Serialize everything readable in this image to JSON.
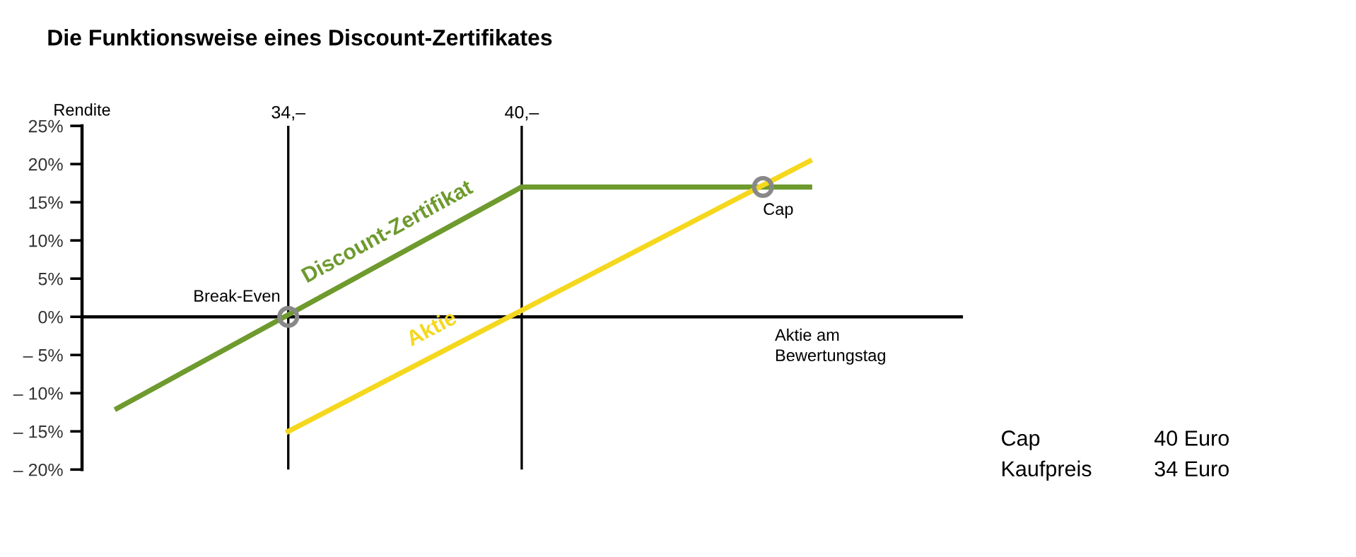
{
  "chart_data": {
    "type": "line",
    "title": "Die Funktionsweise eines Discount-Zertifikates",
    "xlabel": "Aktie am\nBewertungstag",
    "ylabel": "Rendite",
    "series": [
      {
        "name": "Discount-Zertifikat",
        "color": "#6e9a2e",
        "x": [
          29.6,
          40,
          47.4
        ],
        "values": [
          -12,
          17,
          17
        ]
      },
      {
        "name": "Aktie",
        "color": "#f5d81e",
        "x": [
          34,
          47.4
        ],
        "values": [
          -15,
          20.4
        ]
      }
    ],
    "xlim": [
      28.7,
      51.3
    ],
    "xticks": [
      {
        "value": 34,
        "label": "34,–"
      },
      {
        "value": 40,
        "label": "40,–"
      }
    ],
    "ylim": [
      -20,
      25
    ],
    "yticks": [
      {
        "value": 25,
        "label": "25%"
      },
      {
        "value": 20,
        "label": "20%"
      },
      {
        "value": 15,
        "label": "15%"
      },
      {
        "value": 10,
        "label": "10%"
      },
      {
        "value": 5,
        "label": "5%"
      },
      {
        "value": 0,
        "label": "0%"
      },
      {
        "value": -5,
        "label": "– 5%"
      },
      {
        "value": -10,
        "label": "– 10%"
      },
      {
        "value": -15,
        "label": "– 15%"
      },
      {
        "value": -20,
        "label": "– 20%"
      }
    ],
    "grid": "x",
    "legend": false,
    "marker": "none",
    "line_style": "solid",
    "annotations": [
      {
        "text": "Break-Even",
        "x": 34,
        "y": 0
      },
      {
        "text": "Cap",
        "x": 46.2,
        "y": 17
      },
      "Cap",
      "40 Euro",
      "Kaufpreis",
      "34 Euro"
    ]
  }
}
